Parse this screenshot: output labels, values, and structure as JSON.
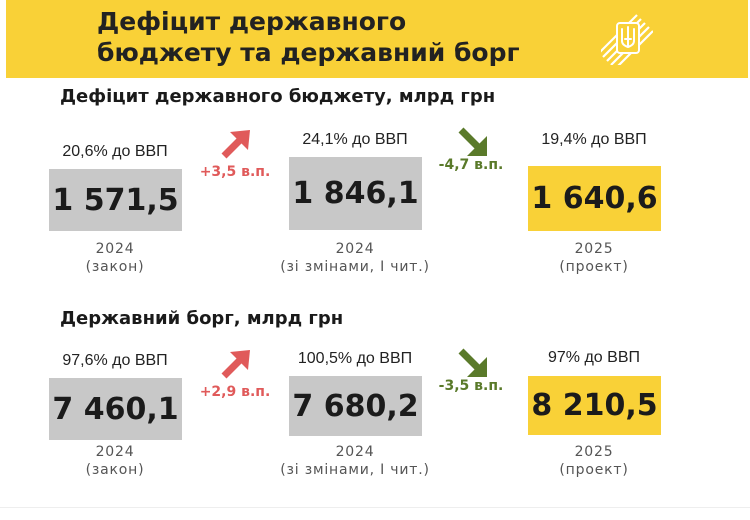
{
  "header": {
    "title_line1": "Дефіцит державного",
    "title_line2": "бюджету та державний борг"
  },
  "colors": {
    "accent": "#f9d137",
    "gray_box": "#c8c8c8",
    "increase": "#e05a5a",
    "decrease": "#5a7a2a"
  },
  "icons": {
    "logo": "ukraine-trident-icon",
    "up": "arrow-up-right-icon",
    "down": "arrow-down-right-icon"
  },
  "deficit": {
    "title": "Дефіцит державного бюджету, млрд грн",
    "col1": {
      "pct": "20,6% до ВВП",
      "value": "1 571,5",
      "year": "2024",
      "note": "(закон)"
    },
    "change1": "+3,5 в.п.",
    "col2": {
      "pct": "24,1% до ВВП",
      "value": "1 846,1",
      "year": "2024",
      "note": "(зі змінами, І чит.)"
    },
    "change2": "-4,7 в.п.",
    "col3": {
      "pct": "19,4% до ВВП",
      "value": "1 640,6",
      "year": "2025",
      "note": "(проект)"
    }
  },
  "debt": {
    "title": "Державний борг, млрд грн",
    "col1": {
      "pct": "97,6% до ВВП",
      "value": "7 460,1",
      "year": "2024",
      "note": "(закон)"
    },
    "change1": "+2,9 в.п.",
    "col2": {
      "pct": "100,5% до ВВП",
      "value": "7 680,2",
      "year": "2024",
      "note": "(зі змінами, І чит.)"
    },
    "change2": "-3,5 в.п.",
    "col3": {
      "pct": "97% до ВВП",
      "value": "8 210,5",
      "year": "2025",
      "note": "(проект)"
    }
  }
}
